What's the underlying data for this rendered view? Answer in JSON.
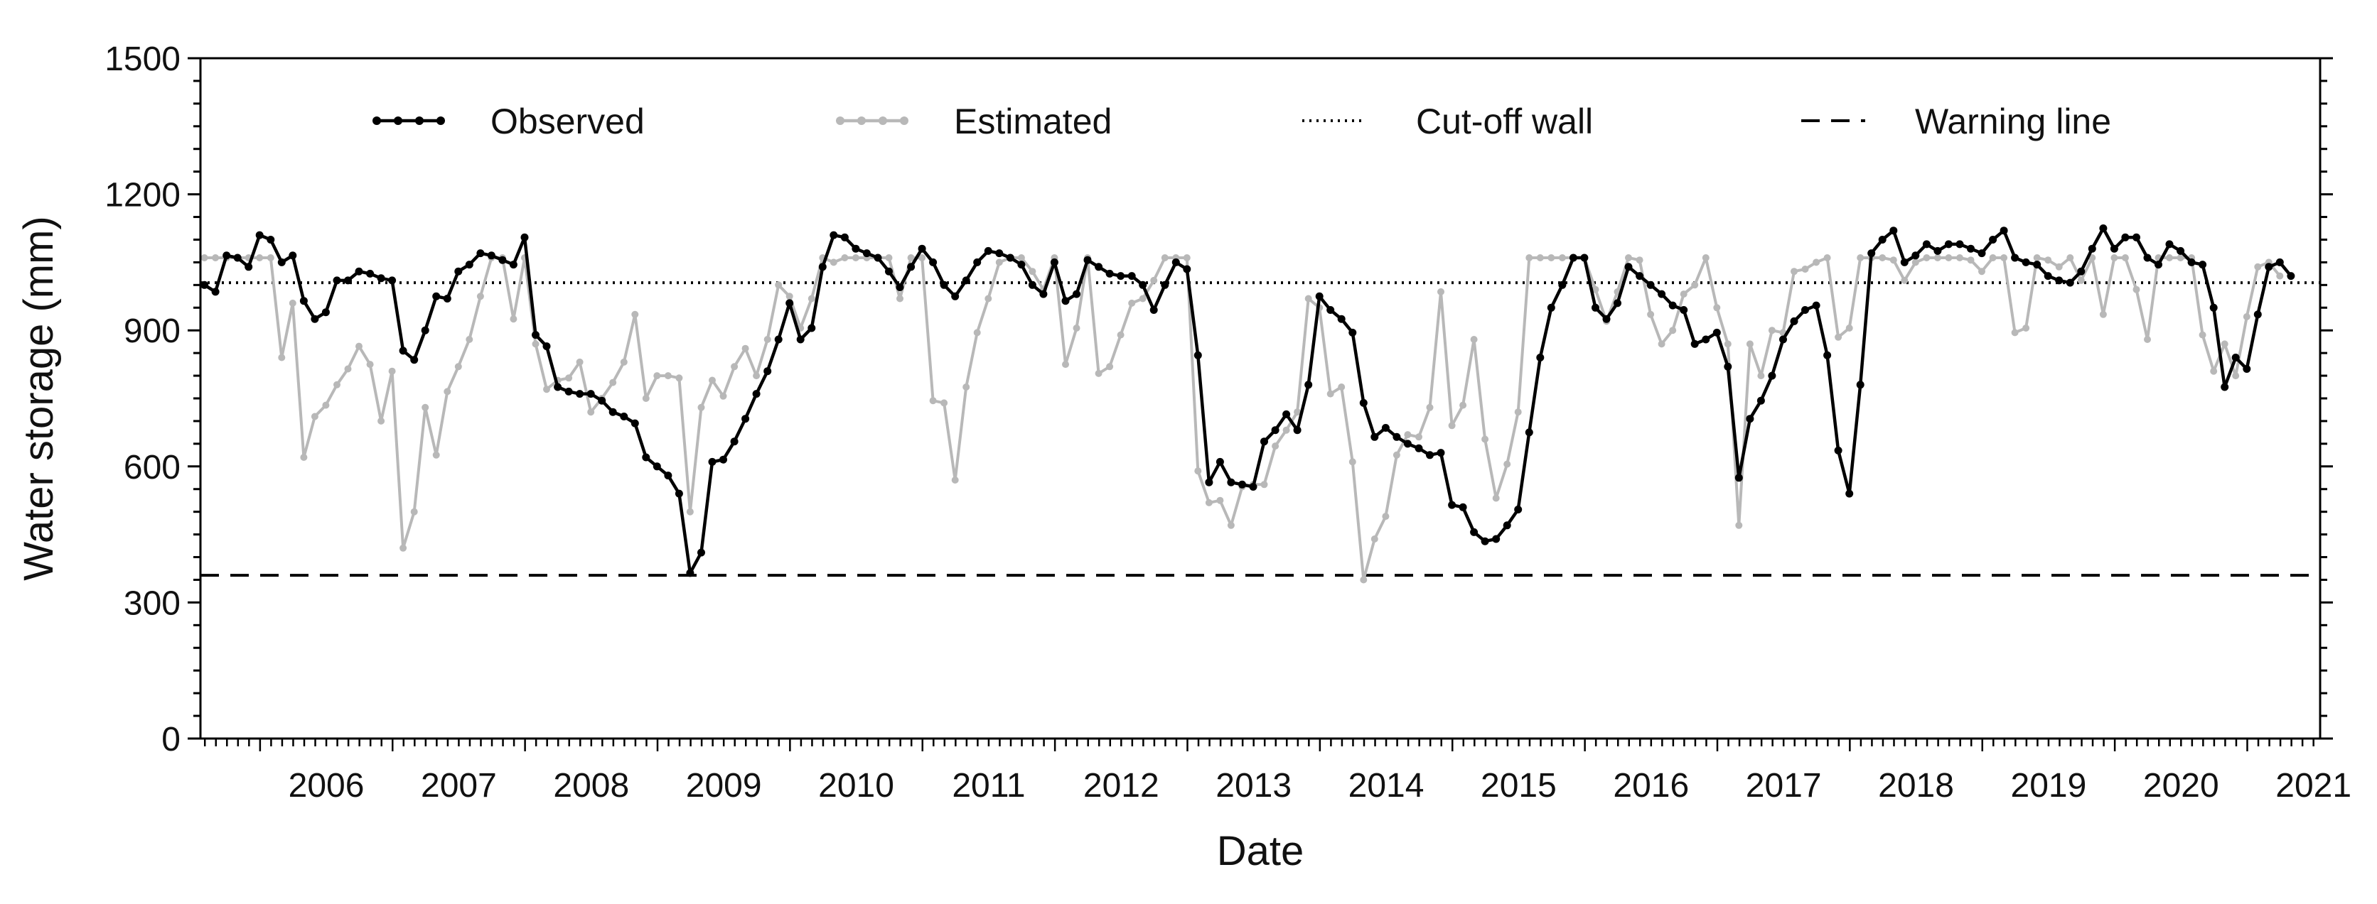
{
  "chart_data": {
    "type": "line",
    "title": "",
    "xlabel": "Date",
    "ylabel": "Water storage (mm)",
    "ylim": [
      0,
      1500
    ],
    "yticks": [
      0,
      300,
      600,
      900,
      1200,
      1500
    ],
    "xlim": [
      2005.55,
      2021.55
    ],
    "xtick_labels": [
      "2006",
      "2007",
      "2008",
      "2009",
      "2010",
      "2011",
      "2012",
      "2013",
      "2014",
      "2015",
      "2016",
      "2017",
      "2018",
      "2019",
      "2020",
      "2021"
    ],
    "legend_position": "top",
    "series": [
      {
        "name": "Observed",
        "color": "#000000",
        "style": "solid-markers",
        "x_start": 2005.58,
        "x_step": 0.08333,
        "values": [
          1000,
          985,
          1065,
          1060,
          1040,
          1110,
          1100,
          1050,
          1065,
          965,
          925,
          940,
          1010,
          1010,
          1030,
          1025,
          1015,
          1010,
          855,
          835,
          900,
          975,
          970,
          1030,
          1045,
          1070,
          1065,
          1055,
          1045,
          1105,
          890,
          865,
          775,
          765,
          760,
          760,
          745,
          720,
          710,
          695,
          620,
          600,
          580,
          540,
          365,
          410,
          610,
          615,
          655,
          705,
          760,
          810,
          880,
          960,
          880,
          905,
          1040,
          1110,
          1105,
          1080,
          1070,
          1060,
          1030,
          995,
          1040,
          1080,
          1050,
          1000,
          975,
          1010,
          1050,
          1075,
          1070,
          1060,
          1045,
          1000,
          980,
          1050,
          965,
          980,
          1055,
          1040,
          1025,
          1020,
          1020,
          1000,
          945,
          1000,
          1050,
          1035,
          845,
          565,
          610,
          565,
          560,
          555,
          655,
          680,
          715,
          680,
          780,
          975,
          945,
          925,
          895,
          740,
          665,
          685,
          665,
          650,
          640,
          625,
          630,
          515,
          510,
          455,
          435,
          440,
          470,
          505,
          675,
          840,
          950,
          1000,
          1060,
          1060,
          950,
          925,
          960,
          1040,
          1020,
          1000,
          980,
          955,
          945,
          870,
          880,
          895,
          820,
          575,
          705,
          745,
          800,
          880,
          920,
          945,
          955,
          845,
          635,
          540,
          780,
          1070,
          1100,
          1120,
          1050,
          1065,
          1090,
          1075,
          1090,
          1090,
          1080,
          1070,
          1100,
          1120,
          1060,
          1050,
          1045,
          1020,
          1010,
          1005,
          1030,
          1080,
          1125,
          1080,
          1105,
          1105,
          1060,
          1045,
          1090,
          1075,
          1050,
          1045,
          950,
          775,
          840,
          815,
          935,
          1040,
          1050,
          1020
        ]
      },
      {
        "name": "Estimated",
        "color": "#b8b8b8",
        "style": "solid-markers",
        "x_start": 2005.58,
        "x_step": 0.08333,
        "values": [
          1060,
          1060,
          1060,
          1060,
          1060,
          1060,
          1060,
          840,
          960,
          620,
          710,
          735,
          780,
          815,
          865,
          825,
          700,
          810,
          420,
          500,
          730,
          625,
          765,
          820,
          880,
          975,
          1060,
          1060,
          925,
          1060,
          870,
          770,
          790,
          795,
          830,
          720,
          750,
          785,
          830,
          935,
          750,
          800,
          800,
          795,
          500,
          730,
          790,
          755,
          820,
          860,
          800,
          880,
          1000,
          975,
          905,
          970,
          1060,
          1050,
          1060,
          1060,
          1060,
          1060,
          1060,
          970,
          1060,
          1060,
          745,
          740,
          570,
          775,
          895,
          970,
          1050,
          1060,
          1060,
          1030,
          990,
          1060,
          825,
          905,
          1060,
          805,
          820,
          890,
          960,
          970,
          1010,
          1060,
          1060,
          1060,
          590,
          520,
          525,
          470,
          555,
          560,
          560,
          645,
          680,
          720,
          970,
          950,
          760,
          775,
          610,
          350,
          440,
          490,
          625,
          670,
          665,
          730,
          985,
          690,
          735,
          880,
          660,
          530,
          605,
          720,
          1060,
          1060,
          1060,
          1060,
          1060,
          1060,
          990,
          920,
          985,
          1060,
          1055,
          935,
          870,
          900,
          980,
          1000,
          1060,
          950,
          870,
          470,
          870,
          800,
          900,
          895,
          1030,
          1035,
          1050,
          1060,
          885,
          905,
          1060,
          1060,
          1060,
          1055,
          1010,
          1050,
          1060,
          1060,
          1060,
          1060,
          1055,
          1030,
          1060,
          1060,
          895,
          905,
          1060,
          1055,
          1040,
          1060,
          1010,
          1060,
          935,
          1060,
          1060,
          990,
          880,
          1060,
          1060,
          1060,
          1060,
          890,
          810,
          870,
          800,
          930,
          1040,
          1050,
          1020
        ]
      },
      {
        "name": "Cut-off wall",
        "color": "#000000",
        "style": "dotted",
        "constant": 1005
      },
      {
        "name": "Warning line",
        "color": "#000000",
        "style": "dashed",
        "constant": 360
      }
    ]
  }
}
